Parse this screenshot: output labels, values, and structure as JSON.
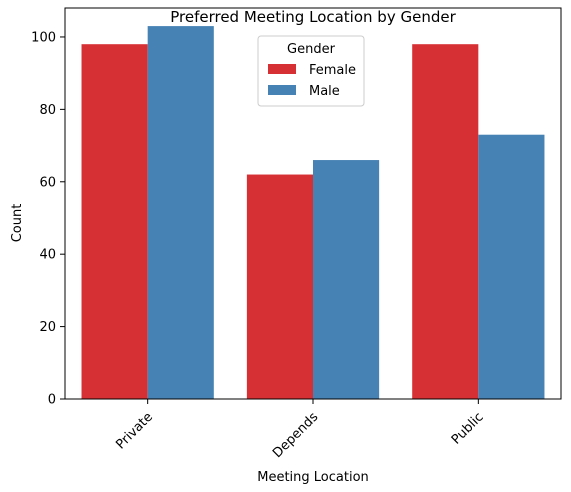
{
  "chart_data": {
    "type": "bar",
    "title": "Preferred Meeting Location by Gender",
    "xlabel": "Meeting Location",
    "ylabel": "Count",
    "categories": [
      "Private",
      "Depends",
      "Public"
    ],
    "series": [
      {
        "name": "Female",
        "color": "#d62f34",
        "values": [
          98,
          62,
          98
        ]
      },
      {
        "name": "Male",
        "color": "#4682b4",
        "values": [
          103,
          66,
          73
        ]
      }
    ],
    "ylim": [
      0,
      108
    ],
    "yticks": [
      0,
      20,
      40,
      60,
      80,
      100
    ],
    "ytick_labels": [
      "0",
      "20",
      "40",
      "60",
      "80",
      "100"
    ],
    "xtick_rotation": 45,
    "grid": false,
    "legend": {
      "title": "Gender",
      "placement": "top-center"
    }
  }
}
